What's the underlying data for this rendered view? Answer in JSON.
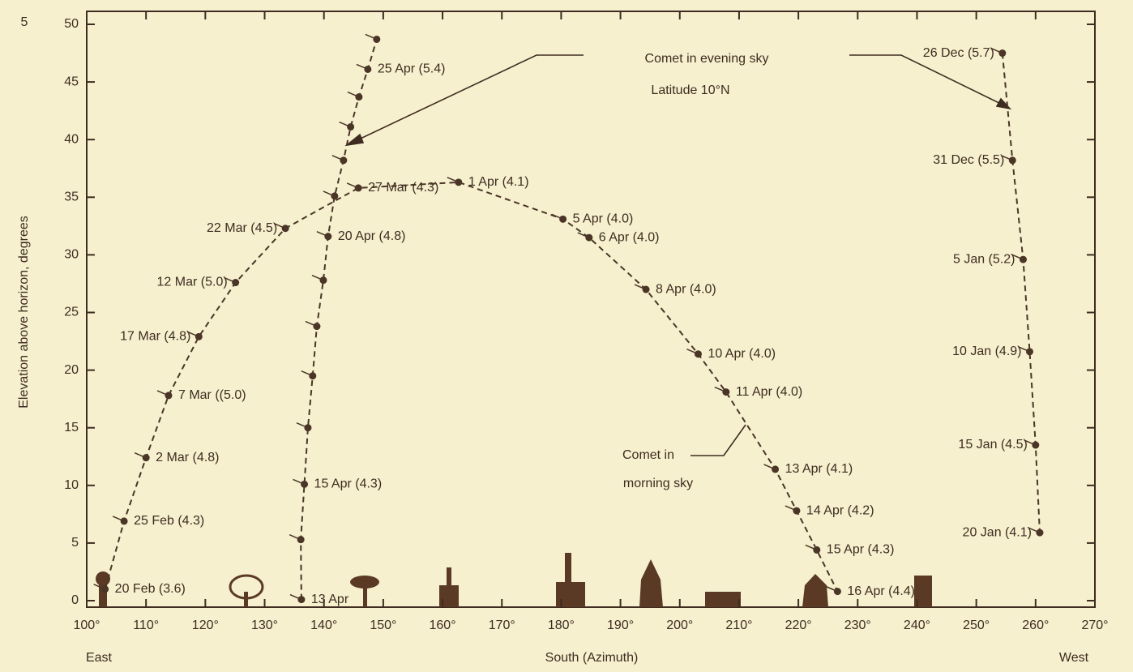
{
  "chart_data": {
    "type": "line",
    "corner_label": "5",
    "xlabel": "South (Azimuth)",
    "xlabel_left": "East",
    "xlabel_right": "West",
    "ylabel": "Elevation above horizon, degrees",
    "annotations": [
      "Comet in evening sky",
      "Latitude 10°N",
      "Comet in",
      "morning sky"
    ],
    "xlim": [
      100,
      270
    ],
    "ylim": [
      0,
      50
    ],
    "xticks": [
      {
        "value": 100,
        "label": "100°"
      },
      {
        "value": 110,
        "label": "110°"
      },
      {
        "value": 120,
        "label": "120°"
      },
      {
        "value": 130,
        "label": "130°"
      },
      {
        "value": 140,
        "label": "140°"
      },
      {
        "value": 150,
        "label": "150°"
      },
      {
        "value": 160,
        "label": "160°"
      },
      {
        "value": 170,
        "label": "170°"
      },
      {
        "value": 180,
        "label": "180°"
      },
      {
        "value": 190,
        "label": "190°"
      },
      {
        "value": 200,
        "label": "200°"
      },
      {
        "value": 210,
        "label": "210°"
      },
      {
        "value": 220,
        "label": "220°"
      },
      {
        "value": 230,
        "label": "230°"
      },
      {
        "value": 240,
        "label": "240°"
      },
      {
        "value": 250,
        "label": "250°"
      },
      {
        "value": 260,
        "label": "260°"
      },
      {
        "value": 270,
        "label": "270°"
      }
    ],
    "yticks": [
      0,
      5,
      10,
      15,
      20,
      25,
      30,
      35,
      40,
      45,
      50
    ],
    "series": [
      {
        "color": "#4a3526",
        "x": [
          103.1,
          106.3,
          110.0,
          113.8,
          118.9,
          125.1,
          133.5,
          145.8,
          162.7,
          180.3,
          184.7,
          194.3,
          203.1,
          207.8,
          216.1,
          219.7,
          223.1,
          226.6
        ],
        "values": [
          1.0,
          6.9,
          12.4,
          17.8,
          22.9,
          27.6,
          32.3,
          35.8,
          36.3,
          33.1,
          31.5,
          27.0,
          21.4,
          18.1,
          11.4,
          7.8,
          4.4,
          0.8
        ],
        "labels": [
          "20 Feb (3.6)",
          "25 Feb (4.3)",
          "2 Mar (4.8)",
          "7 Mar ((5.0)",
          "17 Mar (4.8)",
          "12 Mar (5.0)",
          "22 Mar (4.5)",
          "27 Mar (4.3)",
          "1 Apr (4.1)",
          "5 Apr (4.0)",
          "6 Apr (4.0)",
          "8 Apr (4.0)",
          "10 Apr (4.0)",
          "11 Apr (4.0)",
          "13 Apr (4.1)",
          "14 Apr (4.2)",
          "15 Apr (4.3)",
          "16 Apr (4.4)"
        ]
      },
      {
        "color": "#4a3526",
        "x": [
          136.2,
          136.1,
          136.7,
          137.3,
          138.1,
          138.8,
          139.9,
          140.7,
          141.8,
          143.3,
          144.5,
          145.9,
          147.4,
          148.9
        ],
        "values": [
          0.1,
          5.3,
          10.1,
          15.0,
          19.5,
          23.8,
          27.8,
          31.6,
          35.1,
          38.2,
          41.1,
          43.7,
          46.1,
          48.7
        ],
        "labels": [
          "13 Apr",
          null,
          "15 Apr (4.3)",
          null,
          null,
          null,
          null,
          "20 Apr (4.8)",
          null,
          null,
          null,
          null,
          "25 Apr (5.4)",
          null
        ]
      },
      {
        "color": "#4a3526",
        "x": [
          254.4,
          256.1,
          257.9,
          259.0,
          260.0,
          260.7
        ],
        "values": [
          47.5,
          38.2,
          29.6,
          21.6,
          13.5,
          5.9
        ],
        "labels": [
          "26 Dec (5.7)",
          "31 Dec (5.5)",
          "5 Jan (5.2)",
          "10 Jan (4.9)",
          "15 Jan (4.5)",
          "20 Jan (4.1)"
        ]
      }
    ]
  }
}
